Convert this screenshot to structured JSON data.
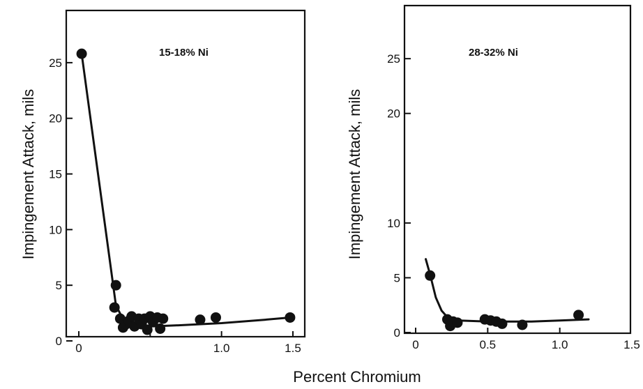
{
  "shared_xlabel": "Percent Chromium",
  "chart_data": [
    {
      "type": "scatter",
      "panel_label": "15-18% Ni",
      "xlabel": "",
      "ylabel": "Impingement Attack, mils",
      "xlim": [
        0,
        1.5
      ],
      "ylim": [
        0,
        28
      ],
      "xticks": [
        0,
        0.5,
        1.0,
        1.5
      ],
      "xtick_labels": [
        "0",
        "",
        "1.0",
        "1.5"
      ],
      "yticks": [
        0,
        5,
        10,
        15,
        20,
        25
      ],
      "ytick_labels": [
        "0",
        "5",
        "10",
        "15",
        "20",
        "25"
      ],
      "grid": false,
      "legend": "none",
      "series": [
        {
          "points": [
            [
              0.02,
              25.8
            ],
            [
              0.26,
              5.0
            ],
            [
              0.25,
              3.0
            ],
            [
              0.29,
              2.0
            ],
            [
              0.31,
              1.2
            ],
            [
              0.33,
              1.5
            ],
            [
              0.35,
              1.8
            ],
            [
              0.37,
              2.2
            ],
            [
              0.39,
              1.3
            ],
            [
              0.42,
              2.0
            ],
            [
              0.44,
              1.5
            ],
            [
              0.46,
              2.0
            ],
            [
              0.48,
              1.0
            ],
            [
              0.5,
              2.2
            ],
            [
              0.52,
              1.7
            ],
            [
              0.55,
              2.1
            ],
            [
              0.57,
              1.1
            ],
            [
              0.59,
              2.0
            ],
            [
              0.85,
              1.9
            ],
            [
              0.96,
              2.1
            ],
            [
              1.48,
              2.1
            ]
          ],
          "fit_curve": [
            [
              0.02,
              25.8
            ],
            [
              0.26,
              3.2
            ],
            [
              0.32,
              1.7
            ],
            [
              0.4,
              1.3
            ],
            [
              0.5,
              1.3
            ],
            [
              0.7,
              1.4
            ],
            [
              1.0,
              1.6
            ],
            [
              1.3,
              1.9
            ],
            [
              1.48,
              2.1
            ]
          ]
        }
      ]
    },
    {
      "type": "scatter",
      "panel_label": "28-32% Ni",
      "xlabel": "",
      "ylabel": "Impingement Attack, mils",
      "xlim": [
        0,
        1.5
      ],
      "ylim": [
        0,
        28
      ],
      "xticks": [
        0,
        0.5,
        1.0,
        1.5
      ],
      "xtick_labels": [
        "0",
        "0.5",
        "1.0",
        "1.5"
      ],
      "yticks": [
        0,
        5,
        10,
        20,
        25
      ],
      "ytick_labels": [
        "0",
        "5",
        "10",
        "20",
        "25"
      ],
      "grid": false,
      "legend": "none",
      "series": [
        {
          "points": [
            [
              0.1,
              5.2
            ],
            [
              0.22,
              1.2
            ],
            [
              0.24,
              0.6
            ],
            [
              0.26,
              1.0
            ],
            [
              0.29,
              0.9
            ],
            [
              0.48,
              1.2
            ],
            [
              0.52,
              1.1
            ],
            [
              0.56,
              1.0
            ],
            [
              0.6,
              0.8
            ],
            [
              0.74,
              0.7
            ],
            [
              1.13,
              1.6
            ]
          ],
          "fit_curve": [
            [
              0.07,
              6.7
            ],
            [
              0.1,
              5.3
            ],
            [
              0.14,
              3.2
            ],
            [
              0.18,
              2.0
            ],
            [
              0.22,
              1.4
            ],
            [
              0.3,
              1.1
            ],
            [
              0.5,
              1.0
            ],
            [
              0.8,
              1.0
            ],
            [
              1.0,
              1.1
            ],
            [
              1.2,
              1.2
            ]
          ]
        }
      ]
    }
  ]
}
